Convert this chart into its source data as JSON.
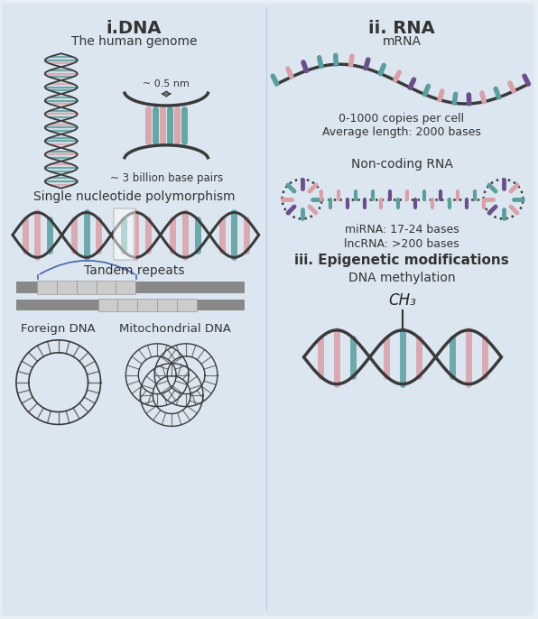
{
  "bg_color": "#e8eef5",
  "panel_color": "#dce6f0",
  "dna_color": "#3a3a3a",
  "teal_color": "#5b9e9e",
  "pink_color": "#d9a0a8",
  "purple_color": "#6b4f8a",
  "gray_bar": "#888888",
  "gray_rect": "#cccccc",
  "left_title": "i.DNA",
  "right_title": "ii. RNA",
  "human_genome_label": "The human genome",
  "size_label": "~ 0.5 nm",
  "bp_label": "~ 3 billion base pairs",
  "snp_label": "Single nucleotide polymorphism",
  "tandem_label": "Tandem repeats",
  "foreign_label": "Foreign DNA",
  "mito_label": "Mitochondrial DNA",
  "mrna_label": "mRNA",
  "mrna_info": "0-1000 copies per cell\nAverage length: 2000 bases",
  "ncrna_label": "Non-coding RNA",
  "mirna_info": "miRNA: 17-24 bases",
  "lncrna_info": "lncRNA: >200 bases",
  "epigenetic_title": "iii. Epigenetic modifications",
  "methylation_label": "DNA methylation",
  "ch3_label": "CH₃"
}
